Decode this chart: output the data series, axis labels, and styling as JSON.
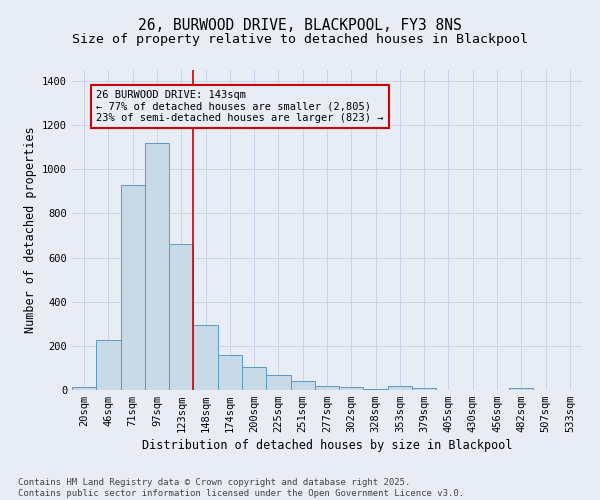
{
  "title_line1": "26, BURWOOD DRIVE, BLACKPOOL, FY3 8NS",
  "title_line2": "Size of property relative to detached houses in Blackpool",
  "xlabel": "Distribution of detached houses by size in Blackpool",
  "ylabel": "Number of detached properties",
  "categories": [
    "20sqm",
    "46sqm",
    "71sqm",
    "97sqm",
    "123sqm",
    "148sqm",
    "174sqm",
    "200sqm",
    "225sqm",
    "251sqm",
    "277sqm",
    "302sqm",
    "328sqm",
    "353sqm",
    "379sqm",
    "405sqm",
    "430sqm",
    "456sqm",
    "482sqm",
    "507sqm",
    "533sqm"
  ],
  "values": [
    15,
    228,
    928,
    1120,
    660,
    295,
    160,
    105,
    68,
    42,
    18,
    14,
    6,
    18,
    8,
    0,
    0,
    0,
    8,
    0,
    0
  ],
  "bar_color": "#c8d9e8",
  "bar_edge_color": "#5a9abf",
  "vline_color": "#cc0000",
  "annotation_box_text": "26 BURWOOD DRIVE: 143sqm\n← 77% of detached houses are smaller (2,805)\n23% of semi-detached houses are larger (823) →",
  "annotation_box_color": "#cc0000",
  "ylim": [
    0,
    1450
  ],
  "yticks": [
    0,
    200,
    400,
    600,
    800,
    1000,
    1200,
    1400
  ],
  "grid_color": "#c8d4e8",
  "background_color": "#e8edf5",
  "footer_text": "Contains HM Land Registry data © Crown copyright and database right 2025.\nContains public sector information licensed under the Open Government Licence v3.0.",
  "title_fontsize": 10.5,
  "subtitle_fontsize": 9.5,
  "axis_label_fontsize": 8.5,
  "tick_fontsize": 7.5,
  "footer_fontsize": 6.5,
  "annotation_fontsize": 7.5
}
